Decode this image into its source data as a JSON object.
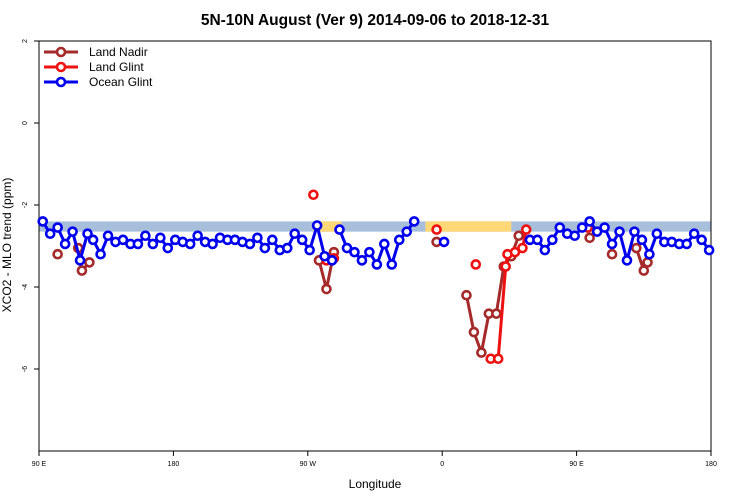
{
  "chart_data": {
    "type": "line",
    "title": "5N-10N August (Ver 9)   2014-09-06 to 2018-12-31",
    "xlabel": "Longitude",
    "ylabel": "XCO2 - MLO trend (ppm)",
    "xlim": [
      90,
      450
    ],
    "ylim": [
      -8,
      2
    ],
    "x_ticks": [
      {
        "value": 90,
        "label": "90 E"
      },
      {
        "value": 162,
        "label": "180"
      },
      {
        "value": 234,
        "label": "90 W"
      },
      {
        "value": 306,
        "label": "0"
      },
      {
        "value": 378,
        "label": "90 E"
      },
      {
        "value": 450,
        "label": "180"
      }
    ],
    "y_ticks": [
      {
        "value": 2,
        "label": "2"
      },
      {
        "value": 0,
        "label": "0"
      },
      {
        "value": -2,
        "label": "-2"
      },
      {
        "value": -4,
        "label": "-4"
      },
      {
        "value": -6,
        "label": "-6"
      }
    ],
    "legend_position": "top-left",
    "grid": false,
    "bands": [
      {
        "x0": 90,
        "x1": 450,
        "y0": -2.65,
        "y1": -2.4,
        "color": "#a8bfdc"
      },
      {
        "x0": 237,
        "x1": 252,
        "y0": -2.65,
        "y1": -2.4,
        "color": "#ffd777"
      },
      {
        "x0": 297,
        "x1": 343,
        "y0": -2.65,
        "y1": -2.4,
        "color": "#ffd777"
      }
    ],
    "series": [
      {
        "name": "Land Nadir",
        "color": "#a52a2a",
        "segments": [
          [
            [
              100,
              -3.2
            ]
          ],
          [
            [
              111,
              -3.05
            ],
            [
              113,
              -3.6
            ],
            [
              117,
              -3.4
            ]
          ],
          [
            [
              240,
              -3.35
            ],
            [
              244,
              -4.05
            ],
            [
              248,
              -3.15
            ]
          ],
          [
            [
              303,
              -2.9
            ]
          ],
          [
            [
              319,
              -4.2
            ],
            [
              323,
              -5.1
            ],
            [
              327,
              -5.6
            ],
            [
              331,
              -4.65
            ],
            [
              335,
              -4.65
            ],
            [
              339,
              -3.5
            ],
            [
              343,
              -3.25
            ],
            [
              347,
              -2.75
            ]
          ],
          [
            [
              385,
              -2.8
            ]
          ],
          [
            [
              397,
              -3.2
            ]
          ],
          [
            [
              410,
              -3.05
            ],
            [
              414,
              -3.6
            ],
            [
              416,
              -3.4
            ]
          ]
        ]
      },
      {
        "name": "Land Glint",
        "color": "#ee1111",
        "segments": [
          [
            [
              237,
              -1.75
            ]
          ],
          [
            [
              244,
              -3.35
            ],
            [
              248,
              -3.3
            ]
          ],
          [
            [
              303,
              -2.6
            ]
          ],
          [
            [
              324,
              -3.45
            ]
          ],
          [
            [
              332,
              -5.75
            ],
            [
              336,
              -5.75
            ],
            [
              340,
              -3.5
            ],
            [
              341,
              -3.2
            ],
            [
              345,
              -3.15
            ],
            [
              349,
              -3.05
            ],
            [
              351,
              -2.6
            ]
          ],
          [
            [
              384,
              -2.55
            ]
          ]
        ]
      },
      {
        "name": "Ocean Glint",
        "color": "#0000ee",
        "segments": [
          [
            [
              92,
              -2.4
            ],
            [
              96,
              -2.7
            ],
            [
              100,
              -2.55
            ],
            [
              104,
              -2.95
            ],
            [
              108,
              -2.65
            ],
            [
              112,
              -3.35
            ],
            [
              116,
              -2.7
            ],
            [
              119,
              -2.85
            ],
            [
              123,
              -3.2
            ],
            [
              127,
              -2.75
            ],
            [
              131,
              -2.9
            ],
            [
              135,
              -2.85
            ],
            [
              139,
              -2.95
            ],
            [
              143,
              -2.95
            ],
            [
              147,
              -2.75
            ],
            [
              151,
              -2.95
            ],
            [
              155,
              -2.8
            ],
            [
              159,
              -3.05
            ],
            [
              163,
              -2.85
            ],
            [
              167,
              -2.9
            ],
            [
              171,
              -2.95
            ],
            [
              175,
              -2.75
            ],
            [
              179,
              -2.9
            ],
            [
              183,
              -2.95
            ],
            [
              187,
              -2.8
            ],
            [
              191,
              -2.85
            ],
            [
              195,
              -2.85
            ],
            [
              199,
              -2.9
            ],
            [
              203,
              -2.95
            ],
            [
              207,
              -2.8
            ],
            [
              211,
              -3.05
            ],
            [
              215,
              -2.85
            ],
            [
              219,
              -3.1
            ],
            [
              223,
              -3.05
            ],
            [
              227,
              -2.7
            ],
            [
              231,
              -2.85
            ],
            [
              235,
              -3.1
            ],
            [
              239,
              -2.5
            ],
            [
              243,
              -3.25
            ],
            [
              247,
              -3.35
            ]
          ],
          [
            [
              251,
              -2.6
            ],
            [
              255,
              -3.05
            ],
            [
              259,
              -3.15
            ],
            [
              263,
              -3.35
            ],
            [
              267,
              -3.15
            ],
            [
              271,
              -3.45
            ],
            [
              275,
              -2.95
            ],
            [
              279,
              -3.45
            ],
            [
              283,
              -2.85
            ],
            [
              287,
              -2.65
            ],
            [
              291,
              -2.4
            ]
          ],
          [
            [
              307,
              -2.9
            ]
          ],
          [
            [
              353,
              -2.85
            ],
            [
              357,
              -2.85
            ],
            [
              361,
              -3.1
            ],
            [
              365,
              -2.85
            ],
            [
              369,
              -2.55
            ],
            [
              373,
              -2.7
            ],
            [
              377,
              -2.75
            ],
            [
              381,
              -2.55
            ],
            [
              385,
              -2.4
            ],
            [
              389,
              -2.65
            ],
            [
              393,
              -2.55
            ],
            [
              397,
              -2.95
            ],
            [
              401,
              -2.65
            ],
            [
              405,
              -3.35
            ],
            [
              409,
              -2.65
            ],
            [
              413,
              -2.85
            ],
            [
              417,
              -3.2
            ],
            [
              421,
              -2.7
            ],
            [
              425,
              -2.9
            ],
            [
              429,
              -2.9
            ],
            [
              433,
              -2.95
            ],
            [
              437,
              -2.95
            ],
            [
              441,
              -2.7
            ],
            [
              445,
              -2.85
            ],
            [
              449,
              -3.1
            ]
          ]
        ]
      }
    ]
  }
}
